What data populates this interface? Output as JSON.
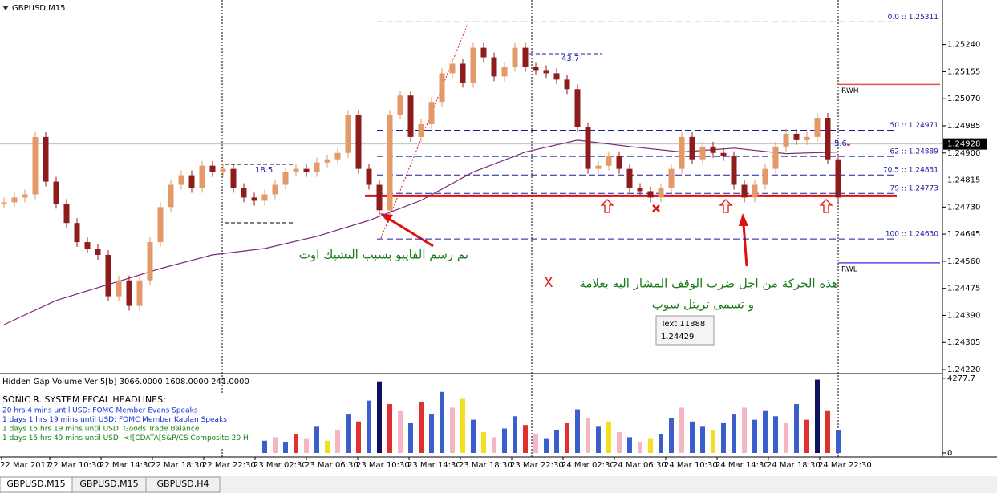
{
  "window": {
    "chart_title": "GBPUSD,M15",
    "tabs": [
      "GBPUSD,M15",
      "GBPUSD,M15",
      "GBPUSD,H4"
    ]
  },
  "chart": {
    "ylim": [
      1.2421,
      1.2538
    ],
    "yticks": [
      {
        "value": 1.2524,
        "label": "1.25240"
      },
      {
        "value": 1.25155,
        "label": "1.25155"
      },
      {
        "value": 1.2507,
        "label": "1.25070"
      },
      {
        "value": 1.24985,
        "label": "1.24985"
      },
      {
        "value": 1.249,
        "label": "1.24900"
      },
      {
        "value": 1.24815,
        "label": "1.24815"
      },
      {
        "value": 1.2473,
        "label": "1.24730"
      },
      {
        "value": 1.24645,
        "label": "1.24645"
      },
      {
        "value": 1.2456,
        "label": "1.24560"
      },
      {
        "value": 1.24475,
        "label": "1.24475"
      },
      {
        "value": 1.2439,
        "label": "1.24390"
      },
      {
        "value": 1.24305,
        "label": "1.24305"
      },
      {
        "value": 1.2422,
        "label": "1.24220"
      }
    ],
    "time_labels": [
      "22 Mar 2017",
      "22 Mar 10:30",
      "22 Mar 14:30",
      "22 Mar 18:30",
      "22 Mar 22:30",
      "23 Mar 02:30",
      "23 Mar 06:30",
      "23 Mar 10:30",
      "23 Mar 14:30",
      "23 Mar 18:30",
      "23 Mar 22:30",
      "24 Mar 02:30",
      "24 Mar 06:30",
      "24 Mar 10:30",
      "24 Mar 14:30",
      "24 Mar 18:30",
      "24 Mar 22:30"
    ],
    "bull_color": "#e39a68",
    "bear_color": "#8e1c1c",
    "closes": [
      1.24745,
      1.2476,
      1.2477,
      1.2495,
      1.2481,
      1.2474,
      1.2468,
      1.2462,
      1.246,
      1.2458,
      1.2445,
      1.245,
      1.2442,
      1.245,
      1.2462,
      1.2473,
      1.248,
      1.2483,
      1.2479,
      1.2486,
      1.2484,
      1.2485,
      1.2479,
      1.2476,
      1.2475,
      1.2477,
      1.248,
      1.2484,
      1.2485,
      1.2484,
      1.2487,
      1.2488,
      1.249,
      1.2502,
      1.2485,
      1.248,
      1.2472,
      1.2502,
      1.2508,
      1.2495,
      1.2499,
      1.2506,
      1.2515,
      1.2518,
      1.2512,
      1.2523,
      1.252,
      1.2514,
      1.2517,
      1.2523,
      1.2517,
      1.2516,
      1.2515,
      1.2513,
      1.251,
      1.2498,
      1.2485,
      1.2486,
      1.2489,
      1.2485,
      1.2479,
      1.2478,
      1.2476,
      1.2479,
      1.2485,
      1.2495,
      1.2488,
      1.2492,
      1.249,
      1.2489,
      1.248,
      1.2476,
      1.248,
      1.2485,
      1.2492,
      1.2496,
      1.2494,
      1.2495,
      1.2501,
      1.2488,
      1.2476
    ],
    "ma_color": "#7a2a7a",
    "ma": [
      1.24361,
      1.24437,
      1.24487,
      1.24537,
      1.2458,
      1.246,
      1.24638,
      1.24688,
      1.24751,
      1.2484,
      1.24903,
      1.2494,
      1.2492,
      1.24903,
      1.24915,
      1.24898,
      1.24903
    ],
    "current_price": {
      "value": 1.24928,
      "label": "1.24928"
    },
    "support_price": 1.24765,
    "fib_levels": [
      {
        "label": "0.0 :: 1.25311",
        "price": 1.25311
      },
      {
        "label": "50 :: 1.24971",
        "price": 1.24971
      },
      {
        "label": "62 :: 1.24889",
        "price": 1.24889
      },
      {
        "label": "70.5 :: 1.24831",
        "price": 1.24831
      },
      {
        "label": "79 :: 1.24773",
        "price": 1.24773
      },
      {
        "label": "100 :: 1.24630",
        "price": 1.2463
      }
    ],
    "small_fib_labels": [
      "18.5",
      "43.7"
    ],
    "rwh": {
      "label": "RWH",
      "price": 1.25115
    },
    "rwl": {
      "label": "RWL",
      "price": 1.24555
    },
    "side_value": "5.6",
    "note_1": "تم رسم الفايبو بسبب التشيك اوت",
    "note_2": "هذه الحركة من اجل ضرب الوقف المشار اليه بعلامة",
    "note_2_mark": "X",
    "note_3": "و تسمى تريتل سوب",
    "tooltip": [
      "Text 11888",
      "1.24429"
    ]
  },
  "volume": {
    "title": "Hidden Gap Volume Ver 5[b] 3066.0000 1608.0000 241.0000",
    "ylim": [
      0,
      4500
    ],
    "yticks": [
      {
        "value": 4277.7,
        "label": "4277.7"
      },
      0
    ],
    "values": [
      null,
      null,
      null,
      null,
      null,
      null,
      null,
      null,
      null,
      null,
      null,
      null,
      null,
      null,
      null,
      null,
      null,
      null,
      null,
      null,
      null,
      null,
      null,
      null,
      null,
      700,
      900,
      600,
      1100,
      800,
      1500,
      700,
      1300,
      2200,
      1800,
      3000,
      4100,
      2800,
      2400,
      1700,
      2900,
      2200,
      3500,
      2600,
      3100,
      1900,
      1200,
      900,
      1400,
      2100,
      1600,
      1100,
      800,
      1300,
      1700,
      2500,
      2000,
      1500,
      1800,
      1200,
      900,
      600,
      800,
      1100,
      2000,
      2600,
      1800,
      1500,
      1300,
      1700,
      2200,
      2600,
      1900,
      2400,
      2100,
      1700,
      2800,
      1900,
      4200,
      2400,
      1300
    ],
    "colors": [
      null,
      null,
      null,
      null,
      null,
      null,
      null,
      null,
      null,
      null,
      null,
      null,
      null,
      null,
      null,
      null,
      null,
      null,
      null,
      null,
      null,
      null,
      null,
      null,
      null,
      "#3a5fcd",
      "#f4b6c2",
      "#3a5fcd",
      "#e03030",
      "#f4b6c2",
      "#3a5fcd",
      "#f0e020",
      "#f4b6c2",
      "#3a5fcd",
      "#e03030",
      "#3a5fcd",
      "#101060",
      "#e03030",
      "#f4b6c2",
      "#3a5fcd",
      "#e03030",
      "#3a5fcd",
      "#3a5fcd",
      "#f4b6c2",
      "#f0e020",
      "#3a5fcd",
      "#f0e020",
      "#f4b6c2",
      "#3a5fcd",
      "#3a5fcd",
      "#e03030",
      "#f4b6c2",
      "#3a5fcd",
      "#3a5fcd",
      "#e03030",
      "#3a5fcd",
      "#f4b6c2",
      "#3a5fcd",
      "#f0e020",
      "#f4b6c2",
      "#3a5fcd",
      "#f4b6c2",
      "#f0e020",
      "#3a5fcd",
      "#3a5fcd",
      "#f4b6c2",
      "#3a5fcd",
      "#3a5fcd",
      "#f0e020",
      "#3a5fcd",
      "#3a5fcd",
      "#f4b6c2",
      "#3a5fcd",
      "#3a5fcd",
      "#3a5fcd",
      "#f4b6c2",
      "#3a5fcd",
      "#e03030",
      "#101060",
      "#e03030",
      "#3a5fcd"
    ],
    "headline_title": "SONIC R. SYSTEM  FFCAL HEADLINES:",
    "headlines": [
      "20 hrs 4 mins until USD: FOMC Member Evans Speaks",
      "1 days 1 hrs 19 mins until USD: FOMC Member Kaplan Speaks",
      "1 days 15 hrs 19 mins until USD: Goods Trade Balance",
      "1 days 15 hrs 49 mins until USD: <![CDATA[S&P/CS Composite-20 H"
    ]
  }
}
